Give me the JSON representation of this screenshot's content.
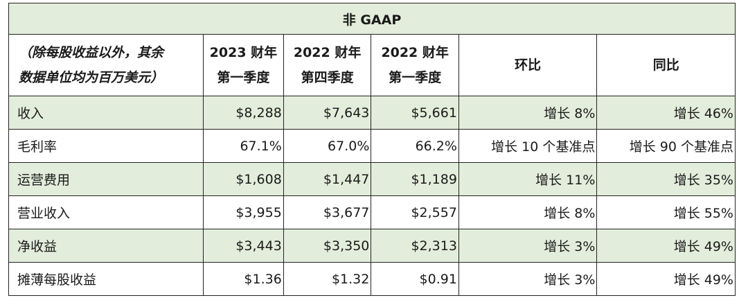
{
  "title": "非 GAAP",
  "header": {
    "desc": "（除每股收益以外，其余数据单位均为百万美元）",
    "desc_line1": "（除每股收益以外，其余",
    "desc_line2": "数据单位均为百万美元）",
    "cols": [
      {
        "line1": "2023 财年",
        "line2": "第一季度"
      },
      {
        "line1": "2022 财年",
        "line2": "第四季度"
      },
      {
        "line1": "2022 财年",
        "line2": "第一季度"
      }
    ],
    "qoq": "环比",
    "yoy": "同比"
  },
  "rows": [
    {
      "label": "收入",
      "v1": "$8,288",
      "v2": "$7,643",
      "v3": "$5,661",
      "qoq": "增长 8%",
      "yoy": "增长 46%"
    },
    {
      "label": "毛利率",
      "v1": "67.1%",
      "v2": "67.0%",
      "v3": "66.2%",
      "qoq": "增长 10 个基准点",
      "yoy": "增长 90 个基准点"
    },
    {
      "label": "运营费用",
      "v1": "$1,608",
      "v2": "$1,447",
      "v3": "$1,189",
      "qoq": "增长 11%",
      "yoy": "增长 35%"
    },
    {
      "label": "营业收入",
      "v1": "$3,955",
      "v2": "$3,677",
      "v3": "$2,557",
      "qoq": "增长 8%",
      "yoy": "增长 55%"
    },
    {
      "label": "净收益",
      "v1": "$3,443",
      "v2": "$3,350",
      "v3": "$2,313",
      "qoq": "增长 3%",
      "yoy": "增长 49%"
    },
    {
      "label": "摊薄每股收益",
      "v1": "$1.36",
      "v2": "$1.32",
      "v3": "$0.91",
      "qoq": "增长 3%",
      "yoy": "增长 49%"
    }
  ],
  "colors": {
    "shade": "#e3eddb",
    "border": "#222222"
  }
}
